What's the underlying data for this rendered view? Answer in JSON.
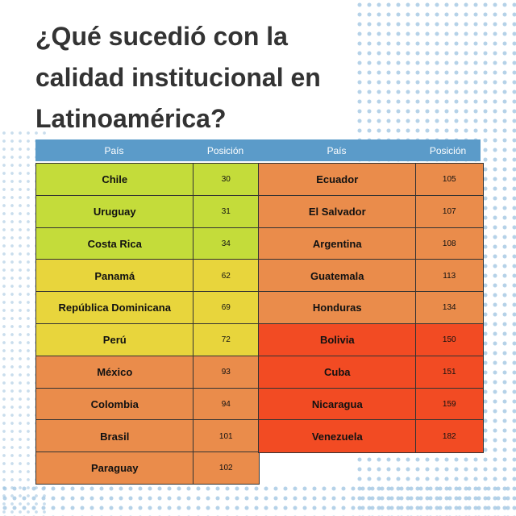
{
  "title_lines": [
    "¿Qué sucedió con la",
    "calidad institucional en",
    "Latinoamérica?"
  ],
  "table": {
    "header": [
      "País",
      "Posición",
      "País",
      "Posición"
    ],
    "left_rows": [
      {
        "country": "Chile",
        "position": 30,
        "color": "#c4dc3a"
      },
      {
        "country": "Uruguay",
        "position": 31,
        "color": "#c4dc3a"
      },
      {
        "country": "Costa Rica",
        "position": 34,
        "color": "#c4dc3a"
      },
      {
        "country": "Panamá",
        "position": 62,
        "color": "#e8d53c"
      },
      {
        "country": "República Dominicana",
        "position": 69,
        "color": "#e8d53c"
      },
      {
        "country": "Perú",
        "position": 72,
        "color": "#e8d53c"
      },
      {
        "country": "México",
        "position": 93,
        "color": "#ea8c4b"
      },
      {
        "country": "Colombia",
        "position": 94,
        "color": "#ea8c4b"
      },
      {
        "country": "Brasil",
        "position": 101,
        "color": "#ea8c4b"
      },
      {
        "country": "Paraguay",
        "position": 102,
        "color": "#ea8c4b"
      }
    ],
    "right_rows": [
      {
        "country": "Ecuador",
        "position": 105,
        "color": "#ea8c4b"
      },
      {
        "country": "El Salvador",
        "position": 107,
        "color": "#ea8c4b"
      },
      {
        "country": "Argentina",
        "position": 108,
        "color": "#ea8c4b"
      },
      {
        "country": "Guatemala",
        "position": 113,
        "color": "#ea8c4b"
      },
      {
        "country": "Honduras",
        "position": 134,
        "color": "#ea8c4b"
      },
      {
        "country": "Bolivia",
        "position": 150,
        "color": "#f24b23"
      },
      {
        "country": "Cuba",
        "position": 151,
        "color": "#f24b23"
      },
      {
        "country": "Nicaragua",
        "position": 159,
        "color": "#f24b23"
      },
      {
        "country": "Venezuela",
        "position": 182,
        "color": "#f24b23"
      }
    ]
  }
}
